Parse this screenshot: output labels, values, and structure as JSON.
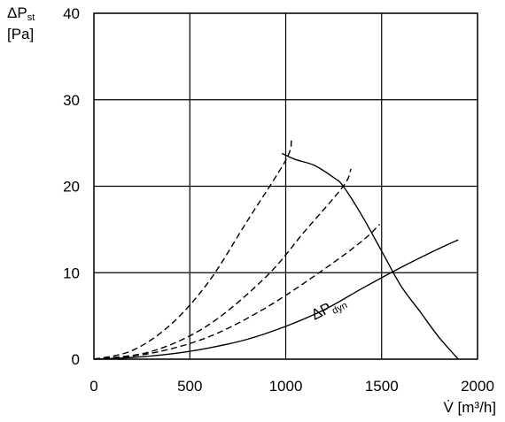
{
  "chart_data": {
    "type": "line",
    "title": "",
    "xlabel": {
      "prefix": "V̇",
      "unit": "[m³/h]"
    },
    "ylabel": {
      "symbol": "ΔP",
      "subscript": "st",
      "unit": "[Pa]"
    },
    "xlim": [
      0,
      2000
    ],
    "ylim": [
      0,
      40
    ],
    "x_ticks": [
      0,
      500,
      1000,
      1500,
      2000
    ],
    "y_ticks": [
      0,
      10,
      20,
      30,
      40
    ],
    "x_tick_labels": [
      "0",
      "500",
      "1000",
      "1500",
      "2000"
    ],
    "y_tick_labels": [
      "0",
      "10",
      "20",
      "30",
      "40"
    ],
    "grid": true,
    "series": [
      {
        "style": "solid",
        "label": "",
        "points": [
          [
            980,
            23.8
          ],
          [
            1050,
            23.1
          ],
          [
            1150,
            22.4
          ],
          [
            1250,
            21.0
          ],
          [
            1300,
            20.0
          ],
          [
            1400,
            16.5
          ],
          [
            1500,
            12.5
          ],
          [
            1600,
            8.5
          ],
          [
            1700,
            5.5
          ],
          [
            1800,
            2.5
          ],
          [
            1900,
            0
          ]
        ]
      },
      {
        "style": "dashed",
        "label": "",
        "points": [
          [
            0,
            0
          ],
          [
            200,
            1.0
          ],
          [
            400,
            4.0
          ],
          [
            600,
            9.0
          ],
          [
            800,
            16.0
          ],
          [
            1000,
            23.0
          ],
          [
            1030,
            25.3
          ]
        ]
      },
      {
        "style": "dashed",
        "label": "",
        "points": [
          [
            0,
            0
          ],
          [
            300,
            0.9
          ],
          [
            600,
            4.0
          ],
          [
            900,
            9.6
          ],
          [
            1100,
            14.8
          ],
          [
            1300,
            20.0
          ],
          [
            1340,
            22.0
          ]
        ]
      },
      {
        "style": "dashed",
        "label": "",
        "points": [
          [
            0,
            0
          ],
          [
            300,
            0.7
          ],
          [
            600,
            2.6
          ],
          [
            900,
            6.0
          ],
          [
            1200,
            10.4
          ],
          [
            1400,
            13.7
          ],
          [
            1490,
            15.6
          ]
        ]
      },
      {
        "style": "solid",
        "label": {
          "symbol": "ΔP",
          "subscript": "dyn"
        },
        "points": [
          [
            0,
            0
          ],
          [
            200,
            0.2
          ],
          [
            400,
            0.6
          ],
          [
            600,
            1.3
          ],
          [
            800,
            2.3
          ],
          [
            1000,
            3.8
          ],
          [
            1200,
            5.7
          ],
          [
            1400,
            8.2
          ],
          [
            1600,
            10.6
          ],
          [
            1800,
            12.8
          ],
          [
            1900,
            13.8
          ]
        ]
      }
    ],
    "annotations": [
      {
        "for_series": 4,
        "anchor": [
          1150,
          4.5
        ]
      }
    ]
  }
}
